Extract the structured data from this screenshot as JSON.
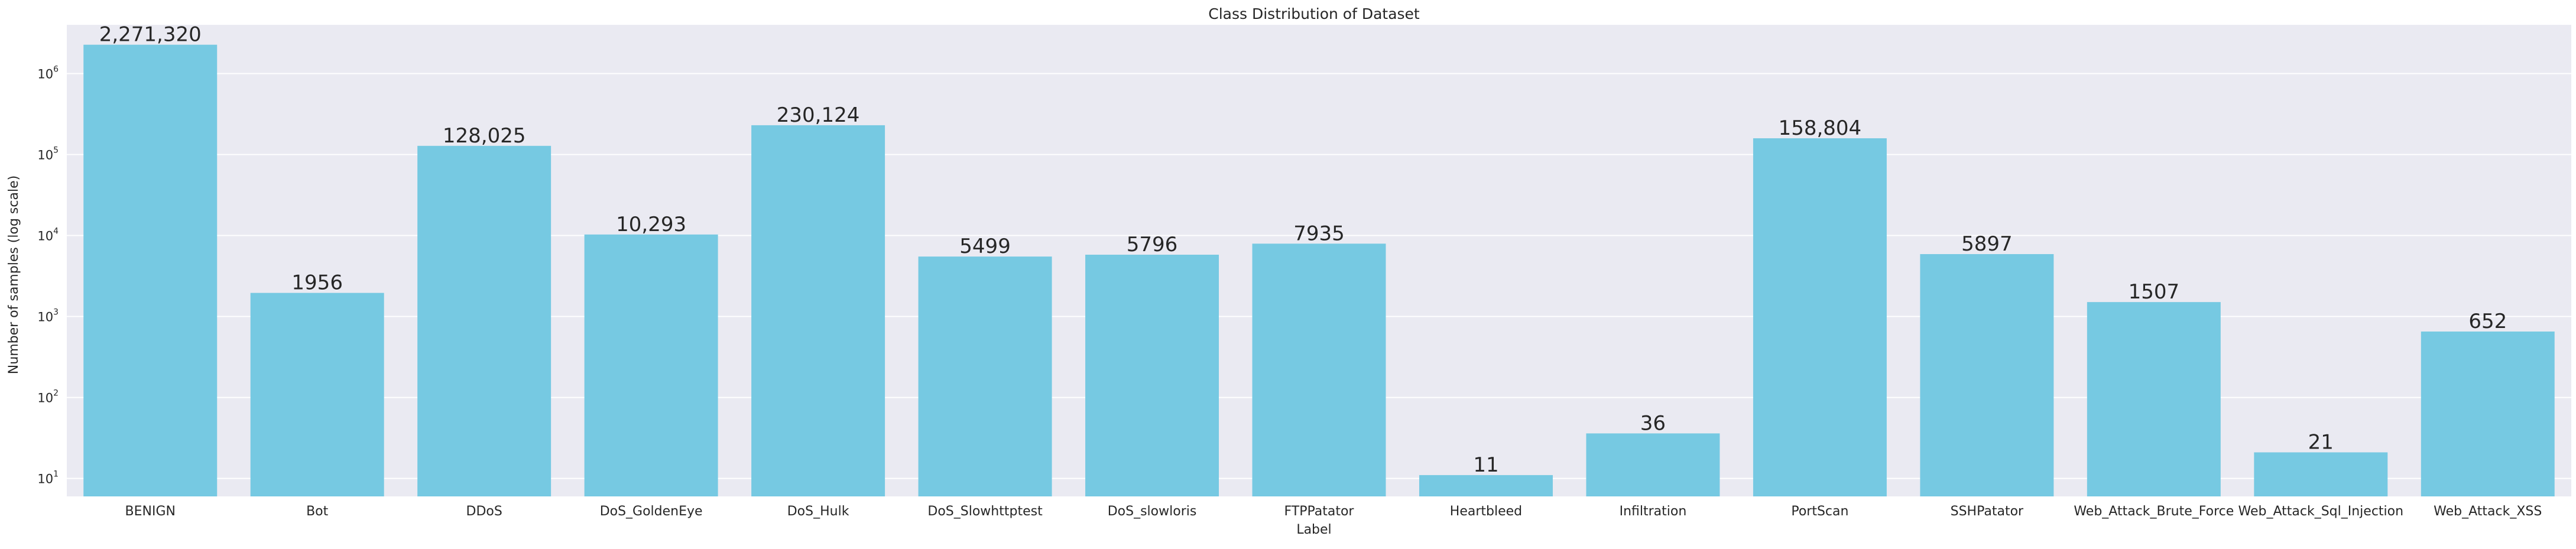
{
  "chart_data": {
    "type": "bar",
    "title": "Class Distribution of Dataset",
    "xlabel": "Label",
    "ylabel": "Number of samples (log scale)",
    "yscale": "log",
    "ylim": [
      6,
      4000000
    ],
    "grid": true,
    "bar_color": "#76c9e2",
    "plot_background": "#eaeaf2",
    "categories": [
      "BENIGN",
      "Bot",
      "DDoS",
      "DoS_GoldenEye",
      "DoS_Hulk",
      "DoS_Slowhttptest",
      "DoS_slowloris",
      "FTPPatator",
      "Heartbleed",
      "Infiltration",
      "PortScan",
      "SSHPatator",
      "Web_Attack_Brute_Force",
      "Web_Attack_Sql_Injection",
      "Web_Attack_XSS"
    ],
    "values": [
      2271320,
      1956,
      128025,
      10293,
      230124,
      5499,
      5796,
      7935,
      11,
      36,
      158804,
      5897,
      1507,
      21,
      652
    ],
    "data_labels": [
      "2,271,320",
      "1956",
      "128,025",
      "10,293",
      "230,124",
      "5499",
      "5796",
      "7935",
      "11",
      "36",
      "158,804",
      "5897",
      "1507",
      "21",
      "652"
    ],
    "ytick_exponents": [
      1,
      2,
      3,
      4,
      5,
      6
    ],
    "ytick_base": "10"
  }
}
